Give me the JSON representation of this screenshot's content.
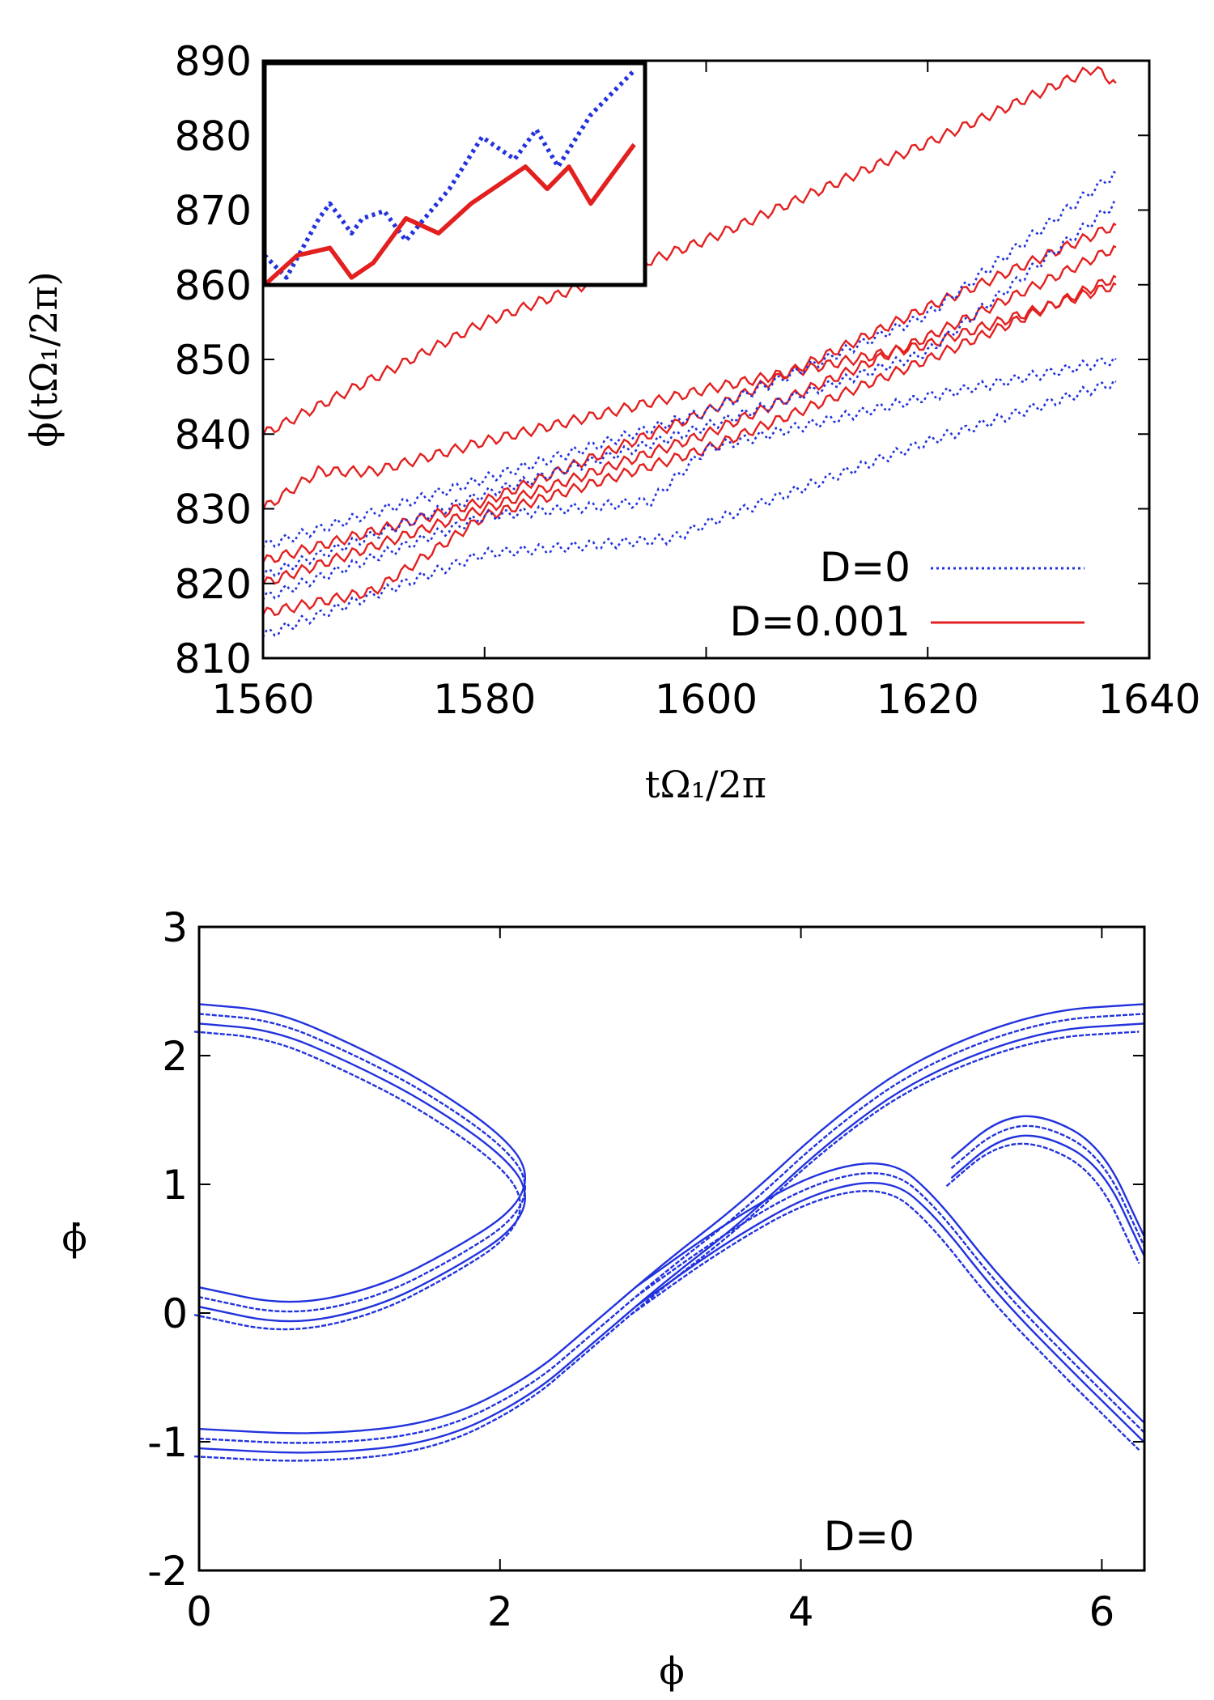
{
  "colors": {
    "d0": "#2233dd",
    "d001": "#e32020",
    "axis": "#000000"
  },
  "chart_data": [
    {
      "type": "line",
      "title": "",
      "xlabel": "tΩ₁/2π",
      "ylabel": "ϕ(tΩ₁/2π)",
      "xlim": [
        1560,
        1640
      ],
      "ylim": [
        810,
        890
      ],
      "xticks": [
        "1560",
        "1580",
        "1600",
        "1620",
        "1640"
      ],
      "yticks": [
        "810",
        "820",
        "830",
        "840",
        "850",
        "860",
        "870",
        "880",
        "890"
      ],
      "legend": {
        "position": "bottom-right",
        "entries": [
          "D=0",
          "D=0.001"
        ]
      },
      "series": [
        {
          "name": "D=0.001",
          "style": "solid",
          "x": [
            1560,
            1580,
            1600,
            1620,
            1635,
            1637
          ],
          "values": [
            840,
            855,
            866,
            879,
            889,
            887
          ]
        },
        {
          "name": "D=0.001",
          "style": "solid",
          "x": [
            1560,
            1565,
            1570,
            1580,
            1600,
            1620,
            1637
          ],
          "values": [
            830,
            835,
            835,
            839,
            846,
            852,
            860
          ]
        },
        {
          "name": "D=0.001",
          "style": "solid",
          "x": [
            1560,
            1580,
            1600,
            1620,
            1637
          ],
          "values": [
            823,
            831,
            843,
            857,
            868
          ]
        },
        {
          "name": "D=0.001",
          "style": "solid",
          "x": [
            1560,
            1580,
            1600,
            1620,
            1637
          ],
          "values": [
            820,
            830,
            840,
            853,
            865
          ]
        },
        {
          "name": "D=0.001",
          "style": "solid",
          "x": [
            1560,
            1570,
            1580,
            1600,
            1620,
            1637
          ],
          "values": [
            816,
            819,
            829,
            838,
            850,
            861
          ]
        },
        {
          "name": "D=0",
          "style": "dotted",
          "x": [
            1560,
            1580,
            1600,
            1620,
            1637
          ],
          "values": [
            825,
            834,
            843,
            856,
            875
          ]
        },
        {
          "name": "D=0",
          "style": "dotted",
          "x": [
            1560,
            1580,
            1600,
            1620,
            1637
          ],
          "values": [
            821,
            832,
            841,
            851,
            871
          ]
        },
        {
          "name": "D=0",
          "style": "dotted",
          "x": [
            1560,
            1580,
            1595,
            1600,
            1620,
            1637
          ],
          "values": [
            818,
            829,
            831,
            838,
            845,
            850
          ]
        },
        {
          "name": "D=0",
          "style": "dotted",
          "x": [
            1560,
            1580,
            1597,
            1600,
            1620,
            1637
          ],
          "values": [
            813,
            824,
            826,
            828,
            839,
            847
          ]
        }
      ],
      "inset": {
        "x": [
          1560,
          1595
        ],
        "ylim": [
          860,
          890
        ],
        "series": [
          {
            "name": "D=0",
            "style": "dotted",
            "x": [
              1560,
              1562,
              1565,
              1566,
              1568,
              1569,
              1571,
              1573,
              1577,
              1580,
              1583,
              1585,
              1587,
              1590,
              1592,
              1594
            ],
            "values": [
              864,
              861,
              869,
              871,
              867,
              869,
              870,
              866,
              873,
              880,
              877,
              881,
              876,
              883,
              886,
              889
            ]
          },
          {
            "name": "D=0.001",
            "style": "solid",
            "x": [
              1560,
              1563,
              1566,
              1568,
              1570,
              1573,
              1576,
              1579,
              1582,
              1584,
              1586,
              1588,
              1590,
              1592,
              1594
            ],
            "values": [
              860,
              864,
              865,
              861,
              863,
              869,
              867,
              871,
              874,
              876,
              873,
              876,
              871,
              875,
              879
            ]
          }
        ]
      }
    },
    {
      "type": "scatter",
      "title": "",
      "xlabel": "ϕ",
      "ylabel": "ϕ̇",
      "xlim": [
        0,
        6.283
      ],
      "ylim": [
        -2,
        3
      ],
      "xticks": [
        "0",
        "2",
        "4",
        "6"
      ],
      "yticks": [
        "-2",
        "-1",
        "0",
        "1",
        "2",
        "3"
      ],
      "annotation": "D=0",
      "series": [
        {
          "name": "D=0",
          "x": [
            0,
            0.8,
            1.6,
            2.2,
            2.6,
            3.1,
            3.6,
            4.2,
            4.8,
            5.6,
            6.28
          ],
          "values": [
            -0.9,
            -0.95,
            -0.85,
            -0.5,
            -0.1,
            0.4,
            0.85,
            1.5,
            2.0,
            2.35,
            2.4
          ]
        },
        {
          "name": "D=0",
          "x": [
            0,
            0.5,
            1.0,
            1.5,
            2.0,
            2.2,
            2.1,
            1.7,
            1.2,
            0.6,
            0
          ],
          "values": [
            2.4,
            2.35,
            2.1,
            1.8,
            1.4,
            1.1,
            0.8,
            0.5,
            0.2,
            0.05,
            0.2
          ]
        },
        {
          "name": "D=0",
          "x": [
            2.9,
            3.5,
            4.1,
            4.6,
            4.9,
            5.3,
            5.8,
            6.28
          ],
          "values": [
            0.2,
            0.7,
            1.1,
            1.2,
            0.9,
            0.3,
            -0.3,
            -0.85
          ]
        },
        {
          "name": "D=0",
          "x": [
            5.0,
            5.3,
            5.6,
            6.0,
            6.28
          ],
          "values": [
            1.2,
            1.5,
            1.55,
            1.3,
            0.6
          ]
        }
      ]
    }
  ]
}
